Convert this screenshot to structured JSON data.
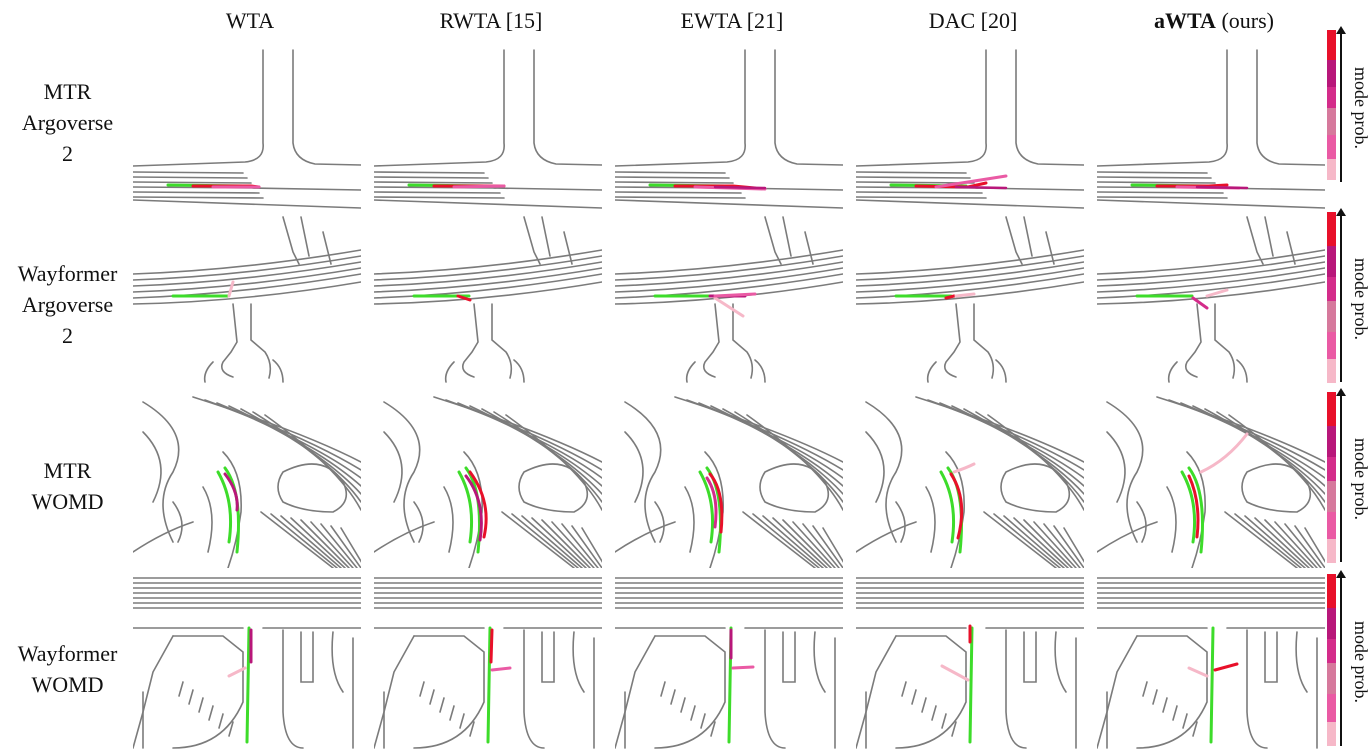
{
  "columns": [
    {
      "label": "WTA",
      "bold_part": ""
    },
    {
      "label": "RWTA [15]",
      "bold_part": ""
    },
    {
      "label": "EWTA [21]",
      "bold_part": ""
    },
    {
      "label": "DAC [20]",
      "bold_part": ""
    },
    {
      "label": " (ours)",
      "bold_part": "aWTA"
    }
  ],
  "rows": [
    {
      "line1": "MTR",
      "line2": "Argoverse",
      "line3": "2",
      "scene": "intersection"
    },
    {
      "line1": "Wayformer",
      "line2": "Argoverse",
      "line3": "2",
      "scene": "junction"
    },
    {
      "line1": "MTR",
      "line2": "WOMD",
      "line3": "",
      "scene": "roundabout"
    },
    {
      "line1": "Wayformer",
      "line2": "WOMD",
      "line3": "",
      "scene": "parking"
    }
  ],
  "colorbar": {
    "label": "mode prob.",
    "colors": [
      "#e8102a",
      "#b8177a",
      "#d42c8a",
      "#d6799c",
      "#ea5aa4",
      "#f6b8c8"
    ]
  },
  "colors": {
    "road": "#7b7b7b",
    "ground_truth": "#3ddc2a",
    "modes": [
      "#e8102a",
      "#b8177a",
      "#d42c8a",
      "#ea5aa4",
      "#f6b8c8"
    ]
  }
}
